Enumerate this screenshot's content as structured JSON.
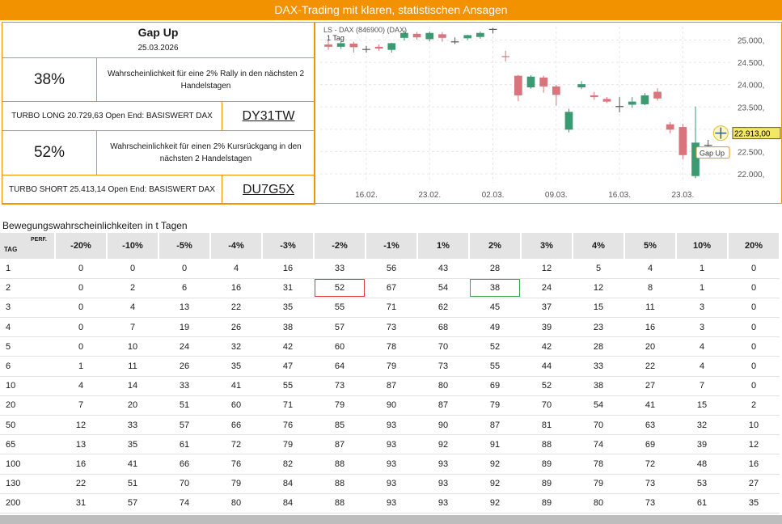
{
  "banner": "DAX-Trading mit klaren, statistischen Ansagen",
  "panel": {
    "title": "Gap Up",
    "date": "25.03.2026",
    "long": {
      "percent": "38%",
      "text": "Wahrscheinlichkeit für eine 2% Rally in den nächsten 2 Handelstagen",
      "product": "TURBO LONG 20.729,63 Open End: BASISWERT DAX",
      "code": "DY31TW"
    },
    "short": {
      "percent": "52%",
      "text": "Wahrscheinlichkeit für einen 2% Kursrückgang in den nächsten 2 Handelstagen",
      "product": "TURBO SHORT 25.413,14 Open End: BASISWERT DAX",
      "code": "DU7G5X"
    }
  },
  "chart_data": {
    "type": "candlestick",
    "title": "LS - DAX (846900) (DAX)",
    "interval": "1 Tag",
    "ylim": [
      21800,
      25300
    ],
    "y_ticks": [
      "25.000,",
      "24.500,",
      "24.000,",
      "23.500,",
      "23.000,",
      "22.500,",
      "22.000,"
    ],
    "y_tick_values": [
      25000,
      24500,
      24000,
      23500,
      23000,
      22500,
      22000
    ],
    "x_ticks": [
      "16.02.",
      "23.02.",
      "02.03.",
      "09.03.",
      "16.03.",
      "23.03."
    ],
    "x_tick_index": [
      3,
      8,
      13,
      18,
      23,
      28
    ],
    "last_price": "22.913,00",
    "annotation": "Gap Up",
    "colors": {
      "up": "#3a9b72",
      "down": "#d9737c",
      "neutral": "#555555",
      "price_tag": "#f5e663"
    },
    "candles": [
      {
        "o": 24900,
        "h": 25010,
        "l": 24780,
        "c": 24850
      },
      {
        "o": 24850,
        "h": 24980,
        "l": 24800,
        "c": 24930
      },
      {
        "o": 24920,
        "h": 24960,
        "l": 24720,
        "c": 24840
      },
      {
        "o": 24800,
        "h": 24870,
        "l": 24720,
        "c": 24800
      },
      {
        "o": 24850,
        "h": 24900,
        "l": 24760,
        "c": 24810
      },
      {
        "o": 24780,
        "h": 24940,
        "l": 24720,
        "c": 24930
      },
      {
        "o": 25050,
        "h": 25220,
        "l": 24990,
        "c": 25160
      },
      {
        "o": 25140,
        "h": 25180,
        "l": 25010,
        "c": 25060
      },
      {
        "o": 25020,
        "h": 25190,
        "l": 24970,
        "c": 25160
      },
      {
        "o": 25130,
        "h": 25180,
        "l": 24960,
        "c": 25050
      },
      {
        "o": 24970,
        "h": 25060,
        "l": 24910,
        "c": 24970
      },
      {
        "o": 25040,
        "h": 25120,
        "l": 25000,
        "c": 25110
      },
      {
        "o": 25070,
        "h": 25190,
        "l": 25030,
        "c": 25160
      },
      {
        "o": 25250,
        "h": 25270,
        "l": 25150,
        "c": 25240
      },
      {
        "o": 24640,
        "h": 24760,
        "l": 24520,
        "c": 24620
      },
      {
        "o": 24200,
        "h": 24220,
        "l": 23630,
        "c": 23760
      },
      {
        "o": 23940,
        "h": 24210,
        "l": 23910,
        "c": 24180
      },
      {
        "o": 24160,
        "h": 24200,
        "l": 23820,
        "c": 23960
      },
      {
        "o": 23960,
        "h": 24000,
        "l": 23530,
        "c": 23770
      },
      {
        "o": 22990,
        "h": 23460,
        "l": 22930,
        "c": 23390
      },
      {
        "o": 23940,
        "h": 24080,
        "l": 23900,
        "c": 24010
      },
      {
        "o": 23760,
        "h": 23840,
        "l": 23660,
        "c": 23720
      },
      {
        "o": 23680,
        "h": 23720,
        "l": 23590,
        "c": 23620
      },
      {
        "o": 23510,
        "h": 23720,
        "l": 23380,
        "c": 23520
      },
      {
        "o": 23550,
        "h": 23720,
        "l": 23480,
        "c": 23620
      },
      {
        "o": 23560,
        "h": 23810,
        "l": 23540,
        "c": 23760
      },
      {
        "o": 23840,
        "h": 23920,
        "l": 23640,
        "c": 23690
      },
      {
        "o": 23110,
        "h": 23160,
        "l": 22910,
        "c": 22990
      },
      {
        "o": 23050,
        "h": 23120,
        "l": 22330,
        "c": 22420
      },
      {
        "o": 21950,
        "h": 23510,
        "l": 21900,
        "c": 22700
      },
      {
        "o": 22650,
        "h": 22760,
        "l": 22510,
        "c": 22650
      },
      {
        "o": 22913,
        "h": 23020,
        "l": 22800,
        "c": 22913
      }
    ]
  },
  "section_title": "Bewegungswahrscheinlichkeiten in t Tagen",
  "table": {
    "tag_label": "TAG",
    "perf_label": "PERF.",
    "columns": [
      "-20%",
      "-10%",
      "-5%",
      "-4%",
      "-3%",
      "-2%",
      "-1%",
      "1%",
      "2%",
      "3%",
      "4%",
      "5%",
      "10%",
      "20%"
    ],
    "highlight": {
      "red": {
        "row": 1,
        "col": 5
      },
      "green": {
        "row": 1,
        "col": 8
      }
    },
    "rows": [
      {
        "tag": "1",
        "values": [
          "0",
          "0",
          "0",
          "4",
          "16",
          "33",
          "56",
          "43",
          "28",
          "12",
          "5",
          "4",
          "1",
          "0"
        ]
      },
      {
        "tag": "2",
        "values": [
          "0",
          "2",
          "6",
          "16",
          "31",
          "52",
          "67",
          "54",
          "38",
          "24",
          "12",
          "8",
          "1",
          "0"
        ]
      },
      {
        "tag": "3",
        "values": [
          "0",
          "4",
          "13",
          "22",
          "35",
          "55",
          "71",
          "62",
          "45",
          "37",
          "15",
          "11",
          "3",
          "0"
        ]
      },
      {
        "tag": "4",
        "values": [
          "0",
          "7",
          "19",
          "26",
          "38",
          "57",
          "73",
          "68",
          "49",
          "39",
          "23",
          "16",
          "3",
          "0"
        ]
      },
      {
        "tag": "5",
        "values": [
          "0",
          "10",
          "24",
          "32",
          "42",
          "60",
          "78",
          "70",
          "52",
          "42",
          "28",
          "20",
          "4",
          "0"
        ]
      },
      {
        "tag": "6",
        "values": [
          "1",
          "11",
          "26",
          "35",
          "47",
          "64",
          "79",
          "73",
          "55",
          "44",
          "33",
          "22",
          "4",
          "0"
        ]
      },
      {
        "tag": "10",
        "values": [
          "4",
          "14",
          "33",
          "41",
          "55",
          "73",
          "87",
          "80",
          "69",
          "52",
          "38",
          "27",
          "7",
          "0"
        ]
      },
      {
        "tag": "20",
        "values": [
          "7",
          "20",
          "51",
          "60",
          "71",
          "79",
          "90",
          "87",
          "79",
          "70",
          "54",
          "41",
          "15",
          "2"
        ]
      },
      {
        "tag": "50",
        "values": [
          "12",
          "33",
          "57",
          "66",
          "76",
          "85",
          "93",
          "90",
          "87",
          "81",
          "70",
          "63",
          "32",
          "10"
        ]
      },
      {
        "tag": "65",
        "values": [
          "13",
          "35",
          "61",
          "72",
          "79",
          "87",
          "93",
          "92",
          "91",
          "88",
          "74",
          "69",
          "39",
          "12"
        ]
      },
      {
        "tag": "100",
        "values": [
          "16",
          "41",
          "66",
          "76",
          "82",
          "88",
          "93",
          "93",
          "92",
          "89",
          "78",
          "72",
          "48",
          "16"
        ]
      },
      {
        "tag": "130",
        "values": [
          "22",
          "51",
          "70",
          "79",
          "84",
          "88",
          "93",
          "93",
          "92",
          "89",
          "79",
          "73",
          "53",
          "27"
        ]
      },
      {
        "tag": "200",
        "values": [
          "31",
          "57",
          "74",
          "80",
          "84",
          "88",
          "93",
          "93",
          "92",
          "89",
          "80",
          "73",
          "61",
          "35"
        ]
      }
    ]
  }
}
